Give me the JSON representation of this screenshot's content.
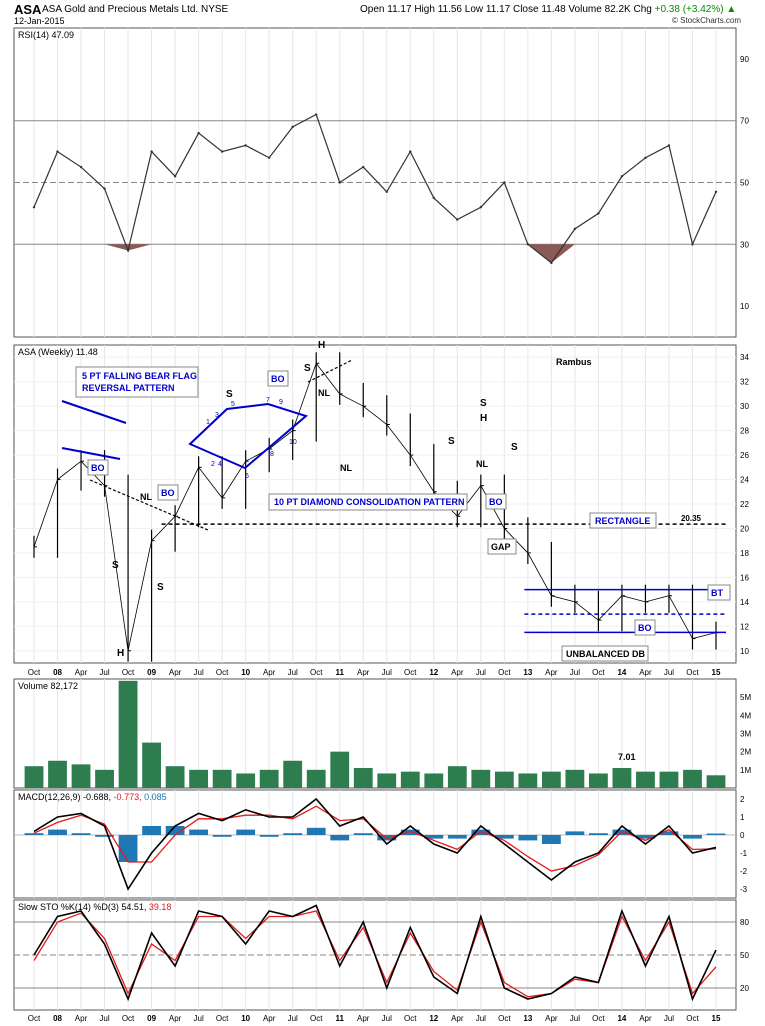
{
  "header": {
    "symbol": "ASA",
    "company": "ASA Gold and Precious Metals Ltd.  NYSE",
    "date": "12-Jan-2015",
    "open_label": "Open",
    "open": "11.17",
    "high_label": "High",
    "high": "11.56",
    "low_label": "Low",
    "low": "11.17",
    "close_label": "Close",
    "close": "11.48",
    "volume_label": "Volume",
    "volume": "82.2K",
    "chg_label": "Chg",
    "chg": "+0.38 (+3.42%)",
    "copyright": "© StockCharts.com"
  },
  "colors": {
    "price": "#000000",
    "annotation": "#0000cc",
    "volume": "#2e7d4f",
    "macd_hist": "#1f77b4",
    "signal": "#e31a1c",
    "rsi_fill": "#8b5a55"
  },
  "chart_data": [
    {
      "type": "line",
      "panel": "rsi",
      "legend": "RSI(14) 47.09",
      "ylim": [
        0,
        100
      ],
      "yticks": [
        10,
        30,
        50,
        70,
        90
      ],
      "reference_lines": [
        30,
        50,
        70
      ],
      "x": [
        "Oct",
        "08",
        "Apr",
        "Jul",
        "Oct",
        "09",
        "Apr",
        "Jul",
        "Oct",
        "10",
        "Apr",
        "Jul",
        "Oct",
        "11",
        "Apr",
        "Jul",
        "Oct",
        "12",
        "Apr",
        "Jul",
        "Oct",
        "13",
        "Apr",
        "Jul",
        "Oct",
        "14",
        "Apr",
        "Jul",
        "Oct",
        "15"
      ],
      "values": [
        42,
        60,
        55,
        48,
        28,
        60,
        52,
        66,
        60,
        62,
        58,
        68,
        72,
        50,
        55,
        47,
        60,
        45,
        38,
        42,
        50,
        30,
        24,
        35,
        40,
        52,
        58,
        62,
        30,
        47
      ]
    },
    {
      "type": "line",
      "panel": "price",
      "legend": "ASA (Weekly) 11.48",
      "ylim": [
        9,
        35
      ],
      "yticks": [
        10,
        12,
        14,
        16,
        18,
        20,
        22,
        24,
        26,
        28,
        30,
        32,
        34
      ],
      "x": [
        "Oct",
        "08",
        "Apr",
        "Jul",
        "Oct",
        "09",
        "Apr",
        "Jul",
        "Oct",
        "10",
        "Apr",
        "Jul",
        "Oct",
        "11",
        "Apr",
        "Jul",
        "Oct",
        "12",
        "Apr",
        "Jul",
        "Oct",
        "13",
        "Apr",
        "Jul",
        "Oct",
        "14",
        "Apr",
        "Jul",
        "Oct",
        "15"
      ],
      "values": [
        18.5,
        24.0,
        25.5,
        23.5,
        10.0,
        19.0,
        21.0,
        25.0,
        22.5,
        25.5,
        26.5,
        28.0,
        33.5,
        31.0,
        30.0,
        28.5,
        26.0,
        23.0,
        21.0,
        23.5,
        20.0,
        18.0,
        14.5,
        14.0,
        12.5,
        14.5,
        14.0,
        14.5,
        11.0,
        11.48
      ],
      "levels": [
        {
          "value": 20.35,
          "label": "20.35",
          "style": "dashed",
          "color": "black"
        },
        {
          "value": 15.0,
          "style": "solid",
          "color": "blue"
        },
        {
          "value": 13.0,
          "style": "dashed",
          "color": "blue"
        },
        {
          "value": 11.5,
          "style": "solid",
          "color": "blue"
        }
      ],
      "annotations": {
        "rambus": "Rambus",
        "falling_flag_line1": "5 PT FALLING BEAR FLAG",
        "falling_flag_line2": "REVERSAL PATTERN",
        "diamond": "10 PT DIAMOND CONSOLIDATION PATTERN",
        "rectangle": "RECTANGLE",
        "gap": "GAP",
        "bt": "BT",
        "unbalanced_db": "UNBALANCED DB",
        "bo": "BO",
        "nl": "NL",
        "s": "S",
        "h": "H",
        "level_label": "20.35",
        "diamond_points": [
          "1",
          "2",
          "3",
          "4",
          "5",
          "6",
          "7",
          "8",
          "9",
          "10"
        ]
      }
    },
    {
      "type": "bar",
      "panel": "volume",
      "legend": "Volume 82,172",
      "ylim": [
        0,
        6
      ],
      "ytick_labels": [
        "1M",
        "2M",
        "3M",
        "4M",
        "5M"
      ],
      "annotation": "7.01",
      "values": [
        1.2,
        1.5,
        1.3,
        1.0,
        5.9,
        2.5,
        1.2,
        1.0,
        1.0,
        0.8,
        1.0,
        1.5,
        1.0,
        2.0,
        1.1,
        0.8,
        0.9,
        0.8,
        1.2,
        1.0,
        0.9,
        0.8,
        0.9,
        1.0,
        0.8,
        1.1,
        0.9,
        0.9,
        1.0,
        0.7
      ]
    },
    {
      "type": "line",
      "panel": "macd",
      "legend_prefix": "MACD(12,26,9)",
      "macd_value": "-0.688",
      "signal_value": "-0.773",
      "hist_value": "0.085",
      "ylim": [
        -3.5,
        2.5
      ],
      "yticks": [
        -3,
        -2,
        -1,
        0,
        1,
        2
      ],
      "macd": [
        0.2,
        1.0,
        1.2,
        0.5,
        -3.0,
        -1.0,
        0.5,
        1.2,
        0.8,
        1.4,
        1.0,
        1.0,
        2.0,
        0.5,
        1.0,
        -0.5,
        0.5,
        -0.5,
        -1.0,
        0.5,
        -0.5,
        -1.5,
        -2.5,
        -1.5,
        -1.0,
        0.5,
        -0.5,
        0.5,
        -1.0,
        -0.69
      ],
      "signal": [
        0.1,
        0.7,
        1.1,
        0.6,
        -1.5,
        -1.5,
        0.0,
        0.9,
        0.9,
        1.1,
        1.1,
        0.9,
        1.6,
        0.8,
        0.9,
        -0.2,
        0.2,
        -0.3,
        -0.8,
        0.2,
        -0.3,
        -1.2,
        -2.0,
        -1.7,
        -1.1,
        0.2,
        -0.3,
        0.3,
        -0.8,
        -0.77
      ]
    },
    {
      "type": "line",
      "panel": "slow_sto",
      "legend_prefix": "Slow STO %K(14) %D(3)",
      "k_value": "54.51",
      "d_value": "39.18",
      "ylim": [
        0,
        100
      ],
      "yticks": [
        20,
        50,
        80
      ],
      "reference_lines": [
        20,
        50,
        80
      ],
      "k": [
        50,
        85,
        90,
        60,
        10,
        70,
        40,
        90,
        85,
        60,
        90,
        85,
        95,
        40,
        80,
        20,
        75,
        30,
        15,
        85,
        20,
        10,
        15,
        30,
        25,
        90,
        40,
        85,
        10,
        54.51
      ],
      "d": [
        45,
        80,
        88,
        65,
        15,
        60,
        45,
        85,
        85,
        65,
        85,
        85,
        90,
        45,
        75,
        25,
        70,
        35,
        18,
        80,
        25,
        12,
        15,
        28,
        25,
        85,
        45,
        80,
        15,
        39.18
      ]
    }
  ]
}
